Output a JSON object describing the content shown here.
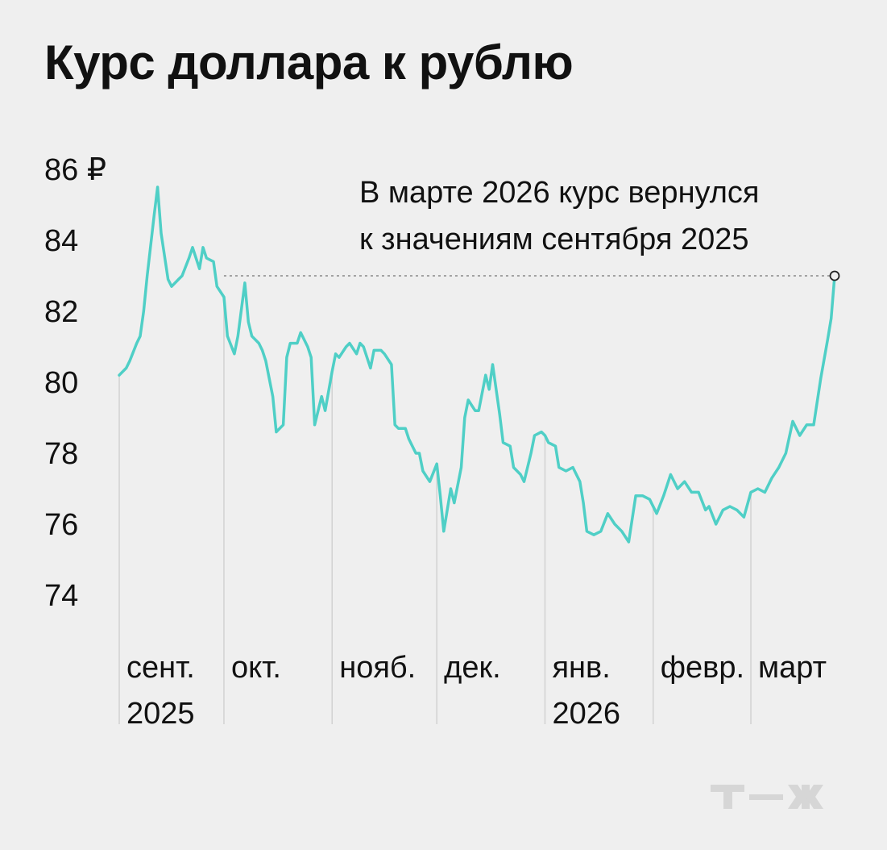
{
  "title": "Курс доллара к рублю",
  "logo_text": "Т—Ж",
  "colors": {
    "line": "#4fcfc6",
    "background": "#efefef",
    "text": "#111111",
    "guides": "#d2d2d2",
    "ref_line": "#888888",
    "logo": "#d6d6d6"
  },
  "chart_data": {
    "type": "line",
    "title": "Курс доллара к рублю",
    "ylabel": "₽",
    "ylim": [
      73,
      86
    ],
    "y_ticks": [
      {
        "value": 86,
        "label": "86 ₽"
      },
      {
        "value": 84,
        "label": "84"
      },
      {
        "value": 82,
        "label": "82"
      },
      {
        "value": 80,
        "label": "80"
      },
      {
        "value": 78,
        "label": "78"
      },
      {
        "value": 76,
        "label": "76"
      },
      {
        "value": 74,
        "label": "74"
      }
    ],
    "x_range": [
      0,
      205
    ],
    "month_starts": [
      {
        "day": 0,
        "line1": "сент.",
        "line2": "2025"
      },
      {
        "day": 30,
        "line1": "окт.",
        "line2": ""
      },
      {
        "day": 61,
        "line1": "нояб.",
        "line2": ""
      },
      {
        "day": 91,
        "line1": "дек.",
        "line2": ""
      },
      {
        "day": 122,
        "line1": "янв.",
        "line2": "2026"
      },
      {
        "day": 153,
        "line1": "февр.",
        "line2": ""
      },
      {
        "day": 181,
        "line1": "март",
        "line2": ""
      }
    ],
    "series": [
      {
        "name": "USD/RUB",
        "points": [
          [
            0,
            80.2
          ],
          [
            2,
            80.4
          ],
          [
            3,
            80.6
          ],
          [
            5,
            81.1
          ],
          [
            6,
            81.3
          ],
          [
            7,
            82.0
          ],
          [
            8,
            83.0
          ],
          [
            10,
            84.7
          ],
          [
            11,
            85.5
          ],
          [
            12,
            84.2
          ],
          [
            14,
            82.9
          ],
          [
            15,
            82.7
          ],
          [
            17,
            82.9
          ],
          [
            18,
            83.0
          ],
          [
            20,
            83.5
          ],
          [
            21,
            83.8
          ],
          [
            23,
            83.2
          ],
          [
            24,
            83.8
          ],
          [
            25,
            83.5
          ],
          [
            27,
            83.4
          ],
          [
            28,
            82.7
          ],
          [
            30,
            82.4
          ],
          [
            31,
            81.3
          ],
          [
            33,
            80.8
          ],
          [
            34,
            81.3
          ],
          [
            36,
            82.8
          ],
          [
            37,
            81.7
          ],
          [
            38,
            81.3
          ],
          [
            40,
            81.1
          ],
          [
            41,
            80.9
          ],
          [
            42,
            80.6
          ],
          [
            44,
            79.6
          ],
          [
            45,
            78.6
          ],
          [
            47,
            78.8
          ],
          [
            48,
            80.7
          ],
          [
            49,
            81.1
          ],
          [
            51,
            81.1
          ],
          [
            52,
            81.4
          ],
          [
            54,
            81.0
          ],
          [
            55,
            80.7
          ],
          [
            56,
            78.8
          ],
          [
            58,
            79.6
          ],
          [
            59,
            79.2
          ],
          [
            61,
            80.3
          ],
          [
            62,
            80.8
          ],
          [
            63,
            80.7
          ],
          [
            65,
            81.0
          ],
          [
            66,
            81.1
          ],
          [
            68,
            80.8
          ],
          [
            69,
            81.1
          ],
          [
            70,
            81.0
          ],
          [
            72,
            80.4
          ],
          [
            73,
            80.9
          ],
          [
            75,
            80.9
          ],
          [
            76,
            80.8
          ],
          [
            78,
            80.5
          ],
          [
            79,
            78.8
          ],
          [
            80,
            78.7
          ],
          [
            82,
            78.7
          ],
          [
            83,
            78.4
          ],
          [
            85,
            78.0
          ],
          [
            86,
            78.0
          ],
          [
            87,
            77.5
          ],
          [
            89,
            77.2
          ],
          [
            91,
            77.7
          ],
          [
            92,
            76.8
          ],
          [
            93,
            75.8
          ],
          [
            95,
            77.0
          ],
          [
            96,
            76.6
          ],
          [
            98,
            77.6
          ],
          [
            99,
            79.0
          ],
          [
            100,
            79.5
          ],
          [
            102,
            79.2
          ],
          [
            103,
            79.2
          ],
          [
            105,
            80.2
          ],
          [
            106,
            79.8
          ],
          [
            107,
            80.5
          ],
          [
            109,
            79.1
          ],
          [
            110,
            78.3
          ],
          [
            112,
            78.2
          ],
          [
            113,
            77.6
          ],
          [
            115,
            77.4
          ],
          [
            116,
            77.2
          ],
          [
            118,
            78.0
          ],
          [
            119,
            78.5
          ],
          [
            121,
            78.6
          ],
          [
            122,
            78.5
          ],
          [
            123,
            78.3
          ],
          [
            125,
            78.2
          ],
          [
            126,
            77.6
          ],
          [
            128,
            77.5
          ],
          [
            130,
            77.6
          ],
          [
            132,
            77.2
          ],
          [
            133,
            76.6
          ],
          [
            134,
            75.8
          ],
          [
            136,
            75.7
          ],
          [
            138,
            75.8
          ],
          [
            140,
            76.3
          ],
          [
            142,
            76.0
          ],
          [
            144,
            75.8
          ],
          [
            146,
            75.5
          ],
          [
            148,
            76.8
          ],
          [
            150,
            76.8
          ],
          [
            152,
            76.7
          ],
          [
            154,
            76.3
          ],
          [
            156,
            76.8
          ],
          [
            158,
            77.4
          ],
          [
            160,
            77.0
          ],
          [
            162,
            77.2
          ],
          [
            164,
            76.9
          ],
          [
            166,
            76.9
          ],
          [
            168,
            76.4
          ],
          [
            169,
            76.5
          ],
          [
            171,
            76.0
          ],
          [
            173,
            76.4
          ],
          [
            175,
            76.5
          ],
          [
            177,
            76.4
          ],
          [
            179,
            76.2
          ],
          [
            181,
            76.9
          ],
          [
            183,
            77.0
          ],
          [
            185,
            76.9
          ],
          [
            187,
            77.3
          ],
          [
            189,
            77.6
          ],
          [
            191,
            78.0
          ],
          [
            193,
            78.9
          ],
          [
            195,
            78.5
          ],
          [
            197,
            78.8
          ],
          [
            199,
            78.8
          ],
          [
            201,
            80.1
          ],
          [
            203,
            81.2
          ],
          [
            204,
            81.8
          ],
          [
            205,
            83.0
          ]
        ]
      }
    ],
    "reference_line": {
      "value": 83.0,
      "from_day": 30,
      "to_day": 205
    },
    "end_marker": {
      "day": 205,
      "value": 83.0
    },
    "annotation": {
      "line1": "В марте 2026 курс вернулся",
      "line2": "к значениям сентября 2025"
    }
  }
}
